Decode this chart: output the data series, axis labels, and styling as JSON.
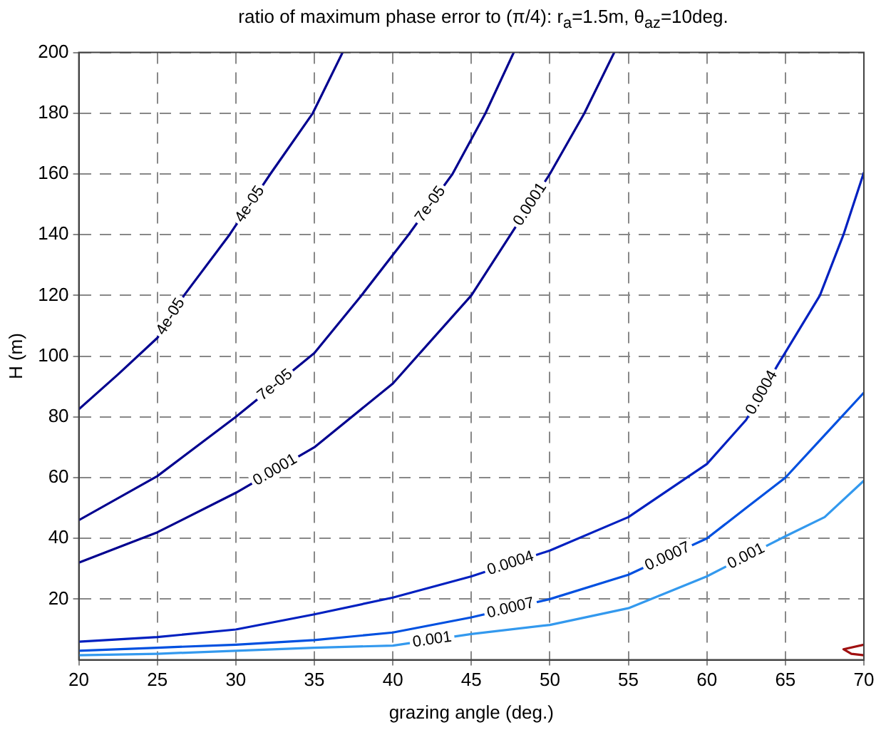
{
  "chart_data": {
    "type": "line",
    "title": "ratio of maximum phase error to (π/4): r$_{a}$=1.5m, θ$_{az}$=10deg.",
    "xlabel": "grazing angle (deg.)",
    "ylabel": "H (m)",
    "xlim": [
      20,
      70
    ],
    "ylim": [
      0,
      200
    ],
    "xticks": [
      20,
      25,
      30,
      35,
      40,
      45,
      50,
      55,
      60,
      65,
      70
    ],
    "yticks": [
      20,
      40,
      60,
      80,
      100,
      120,
      140,
      160,
      180,
      200
    ],
    "grid": true,
    "legend": false,
    "marker": "none",
    "line_style": "solid",
    "series": [
      {
        "name": "4e-05",
        "color": "#00008f",
        "x": [
          20,
          22.5,
          25,
          26.7,
          29.6,
          32.2,
          34.9,
          36.8
        ],
        "values": [
          82.5,
          94,
          106,
          120,
          140,
          160,
          180,
          200
        ]
      },
      {
        "name": "7e-05",
        "color": "#00008f",
        "x": [
          20,
          25,
          30,
          35,
          38,
          41,
          43.8,
          45.9,
          47.7
        ],
        "values": [
          46,
          60.5,
          80,
          101,
          120,
          140,
          160,
          180,
          200
        ]
      },
      {
        "name": "0.0001",
        "color": "#00008f",
        "x": [
          20,
          25,
          30,
          35,
          40,
          45,
          47.5,
          50,
          52.2,
          54.1
        ],
        "values": [
          32,
          42,
          55,
          70,
          91,
          120,
          140,
          160,
          180,
          200
        ]
      },
      {
        "name": "0.0004",
        "color": "#0020c0",
        "x": [
          20,
          25,
          30,
          35,
          40,
          45,
          50,
          55,
          60,
          62.5,
          64.5,
          67.2,
          68.7,
          70
        ],
        "values": [
          6,
          7.5,
          10,
          15,
          20.5,
          27.5,
          36,
          47,
          64.5,
          79,
          97,
          120,
          140,
          160.5
        ]
      },
      {
        "name": "0.0007",
        "color": "#0050e0",
        "x": [
          20,
          25,
          30,
          35,
          40,
          45,
          50,
          55,
          60,
          62.5,
          65,
          67.5,
          70
        ],
        "values": [
          3,
          4,
          5,
          6.5,
          9,
          14,
          20,
          28,
          40,
          50,
          60,
          74,
          88
        ]
      },
      {
        "name": "0.001",
        "color": "#3399ee",
        "x": [
          20,
          25,
          30,
          35,
          40,
          45,
          50,
          55,
          60,
          65,
          67.5,
          70
        ],
        "values": [
          1.5,
          2,
          3,
          4,
          4.7,
          8.5,
          11.5,
          17,
          27.5,
          40.7,
          47,
          59
        ]
      },
      {
        "color": "#a01010",
        "x": [
          70,
          68.7,
          69.2,
          70
        ],
        "values": [
          5,
          3.5,
          2,
          1.5
        ]
      }
    ]
  }
}
